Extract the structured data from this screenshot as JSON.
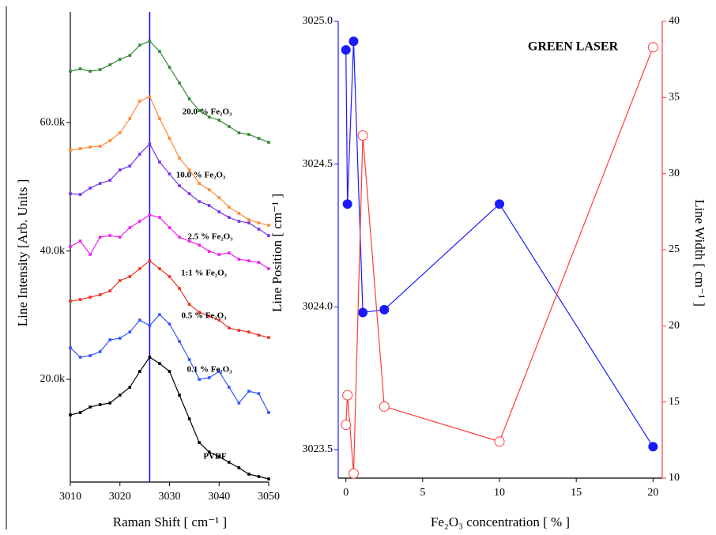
{
  "chart_data": [
    {
      "type": "line",
      "x_label": "Raman Shift [ cm⁻¹ ]",
      "y_label": "Line Intensity [Arb. Units ]",
      "x": [
        3010,
        3012,
        3014,
        3016,
        3018,
        3020,
        3022,
        3024,
        3026,
        3028,
        3030,
        3032,
        3034,
        3036,
        3038,
        3040,
        3042,
        3044,
        3046,
        3048,
        3050
      ],
      "series": [
        {
          "name": "PVDF",
          "color": "#000000",
          "values": [
            14460,
            14830,
            15690,
            16060,
            16310,
            17540,
            18770,
            21230,
            23450,
            22460,
            21230,
            17540,
            13850,
            10150,
            8680,
            7940,
            7080,
            6220,
            5230,
            4860,
            4490
          ]
        },
        {
          "name": "0.1 % Fe₂O₃",
          "color": "#3355ff",
          "values": [
            24920,
            23450,
            23690,
            24310,
            26150,
            26400,
            27380,
            29230,
            28370,
            30090,
            28620,
            25910,
            23080,
            20000,
            20250,
            21230,
            18770,
            16310,
            18150,
            17780,
            14830
          ]
        },
        {
          "name": "0.5 % Fe₂O₃",
          "color": "#ee3322",
          "values": [
            32180,
            32430,
            32800,
            33170,
            33780,
            35380,
            36000,
            37230,
            38460,
            37230,
            36000,
            34150,
            31690,
            30460,
            29850,
            29230,
            28000,
            27630,
            27380,
            26890,
            26520
          ]
        },
        {
          "name": "1:1 % Fe₂O₃",
          "color": "#ee22ee",
          "values": [
            40680,
            41540,
            39450,
            42150,
            42400,
            42150,
            43630,
            44620,
            45600,
            45230,
            43630,
            42150,
            41540,
            40920,
            39940,
            39450,
            39690,
            38710,
            38460,
            38220,
            37230
          ]
        },
        {
          "name": "2.5 % Fe₂O₃",
          "color": "#7733ee",
          "values": [
            48920,
            48800,
            49790,
            50520,
            51020,
            52620,
            53230,
            55080,
            56680,
            53850,
            52000,
            50150,
            48920,
            47690,
            47080,
            46090,
            45230,
            44620,
            44370,
            43390,
            42400
          ]
        },
        {
          "name": "10.0 % Fe₂O₃",
          "color": "#ff8833",
          "values": [
            55690,
            55940,
            56190,
            56310,
            57170,
            58400,
            60620,
            63320,
            64060,
            60620,
            57540,
            54460,
            52620,
            50520,
            49540,
            48310,
            46830,
            45850,
            44860,
            44370,
            44000
          ]
        },
        {
          "name": "20.0 % Fe₂O₃",
          "color": "#338833",
          "values": [
            68000,
            68370,
            68000,
            68250,
            68990,
            69850,
            70460,
            72060,
            72680,
            71080,
            68620,
            66160,
            63690,
            61850,
            60860,
            60370,
            59390,
            58400,
            58150,
            57540,
            56920
          ]
        }
      ],
      "vline": 3026,
      "vline_color": "#0000ff",
      "xlim": [
        3010,
        3050
      ],
      "xticks": [
        3010,
        3020,
        3030,
        3040,
        3050
      ],
      "ylim": [
        4000,
        75400
      ],
      "yticks": [
        {
          "value": 20000,
          "label": "20.0k"
        },
        {
          "value": 40000,
          "label": "40.0k"
        },
        {
          "value": 60000,
          "label": "60.0k"
        }
      ]
    },
    {
      "type": "line",
      "annotation": "GREEN LASER",
      "x_label": "Fe₂O₃ concentration [ % ]",
      "y_label": "Line Position [ cm⁻¹ ]",
      "y2_label": "Line Width [ cm⁻¹ ]",
      "x": [
        0,
        0.1,
        0.5,
        1.1,
        2.5,
        10,
        20
      ],
      "series": [
        {
          "color": "#1a1aff",
          "marker": "filled",
          "values": [
            3024.9,
            3024.36,
            3024.93,
            3023.98,
            3023.99,
            3024.36,
            3023.51
          ]
        },
        {
          "color": "#ff3b3b",
          "marker": "open",
          "axis": "y2",
          "values": [
            13.5,
            15.45,
            10.3,
            32.5,
            14.7,
            12.4,
            38.3
          ]
        }
      ],
      "xlim": [
        -0.5,
        20.6
      ],
      "xticks": [
        0,
        5,
        10,
        15,
        20
      ],
      "ylim": [
        3023.4,
        3025.0
      ],
      "yticks": [
        3023.5,
        {
          "value": 3024,
          "label": "3024.0"
        },
        3024.5,
        {
          "value": 3025,
          "label": "3025.0"
        }
      ],
      "y2lim": [
        10,
        40
      ],
      "y2ticks": [
        10,
        15,
        20,
        25,
        30,
        35,
        40
      ]
    }
  ]
}
